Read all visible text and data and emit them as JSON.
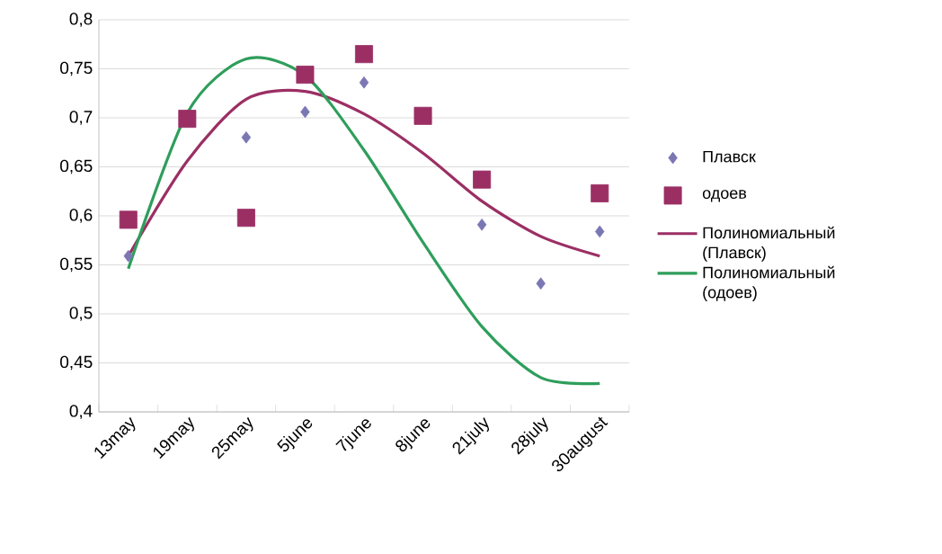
{
  "chart_data": {
    "type": "scatter",
    "categories": [
      "13may",
      "19may",
      "25may",
      "5june",
      "7june",
      "8june",
      "21july",
      "28july",
      "30august"
    ],
    "series": [
      {
        "name": "Плавск",
        "marker": "diamond",
        "color": "#7b77b3",
        "values": [
          0.559,
          null,
          0.68,
          0.706,
          0.736,
          null,
          0.591,
          0.531,
          0.584
        ]
      },
      {
        "name": "одоев",
        "marker": "square",
        "color": "#9b2f64",
        "values": [
          0.596,
          0.699,
          0.598,
          0.744,
          0.765,
          0.702,
          0.637,
          null,
          0.623
        ]
      },
      {
        "name": "Полиномиальный (Плавск)",
        "type": "line",
        "marker": "none",
        "color": "#9b2f64",
        "values": [
          0.559,
          0.656,
          0.719,
          0.727,
          0.704,
          0.664,
          0.615,
          0.579,
          0.559
        ]
      },
      {
        "name": "Полиномиальный (одоев)",
        "type": "line",
        "marker": "none",
        "color": "#2e9e5b",
        "values": [
          0.546,
          0.705,
          0.76,
          0.743,
          0.667,
          0.573,
          0.487,
          0.435,
          0.429
        ]
      }
    ],
    "ylim": [
      0.4,
      0.8
    ],
    "yticks": [
      {
        "value": 0.4,
        "label": "0,4"
      },
      {
        "value": 0.45,
        "label": "0,45"
      },
      {
        "value": 0.5,
        "label": "0,5"
      },
      {
        "value": 0.55,
        "label": "0,55"
      },
      {
        "value": 0.6,
        "label": "0,6"
      },
      {
        "value": 0.65,
        "label": "0,65"
      },
      {
        "value": 0.7,
        "label": "0,7"
      },
      {
        "value": 0.75,
        "label": "0,75"
      },
      {
        "value": 0.8,
        "label": "0,8"
      }
    ],
    "grid": "y",
    "legend": "right"
  }
}
